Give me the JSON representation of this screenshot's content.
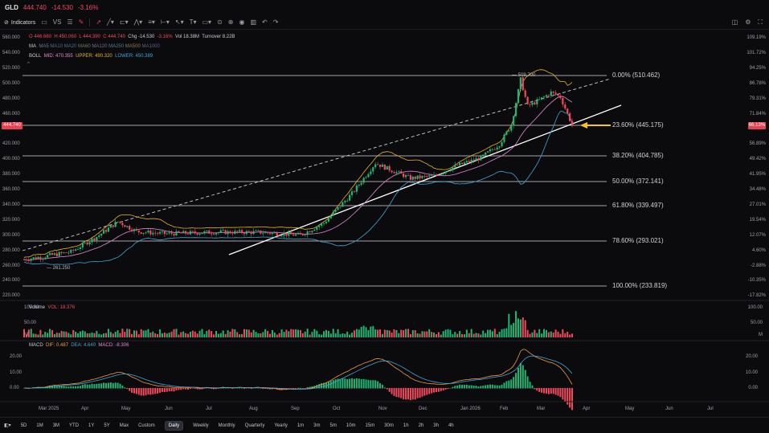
{
  "header": {
    "symbol": "GLD",
    "price": "444.740",
    "change": "-14.530",
    "change_pct": "-3.16%"
  },
  "toolbar": {
    "indicators_label": "Indicators",
    "vs_label": "VS"
  },
  "ohlc": {
    "open": "O 446.660",
    "high": "H 450.060",
    "low": "L 444.390",
    "close": "C 444.740",
    "chg": "Chg -14.530",
    "chg_pct": "-3.16%",
    "vol": "Vol 18.38M",
    "turnover": "Turnover 8.22B"
  },
  "ma_legend": {
    "label": "MA",
    "items": [
      "MA5",
      "MA10",
      "MA20",
      "MA60",
      "MA120",
      "MA250",
      "MA500",
      "MA1000"
    ]
  },
  "boll": {
    "label": "BOLL",
    "mid": "MID: 470.355",
    "upper": "UPPER: 490.320",
    "lower": "LOWER: 450.389",
    "mid_color": "#e28bd6",
    "upper_color": "#e6b422",
    "lower_color": "#3ea6d8"
  },
  "price_axis": [
    "560.000",
    "540.000",
    "520.000",
    "500.000",
    "480.000",
    "460.000",
    "440.000",
    "420.000",
    "400.000",
    "380.000",
    "360.000",
    "340.000",
    "320.000",
    "300.000",
    "280.000",
    "260.000",
    "240.000",
    "220.000"
  ],
  "pct_axis": [
    "109.19%",
    "101.72%",
    "94.25%",
    "86.78%",
    "79.31%",
    "71.84%",
    "64.37%",
    "56.89%",
    "49.42%",
    "41.95%",
    "34.48%",
    "27.01%",
    "19.54%",
    "12.07%",
    "4.60%",
    "-2.88%",
    "-10.35%",
    "-17.82%"
  ],
  "current_price_tag": "444.740",
  "current_pct_tag": "66.13%",
  "fib_levels": [
    {
      "label": "0.00% (510.462)"
    },
    {
      "label": "23.60% (445.175)"
    },
    {
      "label": "38.20% (404.785)"
    },
    {
      "label": "50.00% (372.141)"
    },
    {
      "label": "61.80% (339.497)"
    },
    {
      "label": "78.60% (293.021)"
    },
    {
      "label": "100.00% (233.819)"
    }
  ],
  "annotations": {
    "high": "509.700",
    "low": "261.250"
  },
  "volume": {
    "label": "Volume",
    "vol": "VOL: 18.376",
    "axis": [
      "100.00",
      "50.00",
      "M"
    ]
  },
  "macd": {
    "label": "MACD",
    "dif": "DIF: 0.487",
    "dea": "DEA: 4.640",
    "macd": "MACD: -8.306",
    "axis": [
      "20.00",
      "10.00",
      "0.00"
    ]
  },
  "x_axis": [
    "Mar 2025",
    "Apr",
    "May",
    "Jun",
    "Jul",
    "Aug",
    "Sep",
    "Oct",
    "Nov",
    "Dec",
    "Jan 2026",
    "Feb",
    "Mar",
    "Apr",
    "May",
    "Jun",
    "Jul"
  ],
  "periods": [
    "5D",
    "1M",
    "3M",
    "YTD",
    "1Y",
    "5Y",
    "Max",
    "Custom",
    "Daily",
    "Weekly",
    "Monthly",
    "Quarterly",
    "Yearly",
    "1m",
    "3m",
    "5m",
    "10m",
    "15m",
    "30m",
    "1h",
    "2h",
    "3h",
    "4h"
  ],
  "active_period": "Daily",
  "colors": {
    "up": "#22b573",
    "down": "#f2495c",
    "arrow": "#f5c518"
  }
}
